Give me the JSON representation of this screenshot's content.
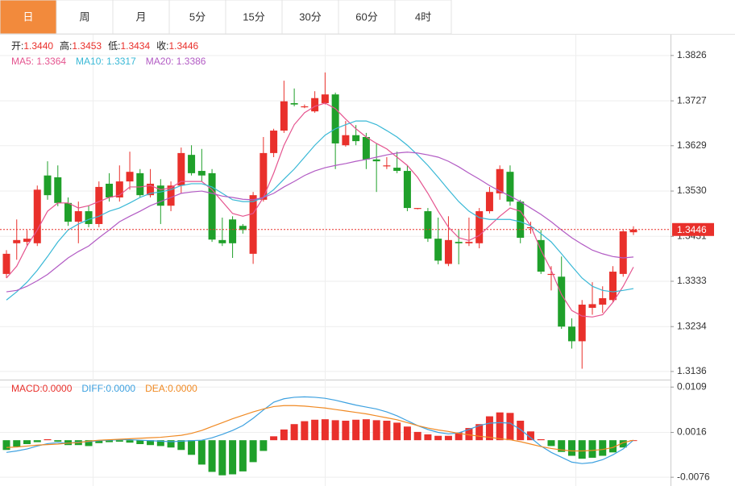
{
  "tabs": [
    "日",
    "周",
    "月",
    "5分",
    "15分",
    "30分",
    "60分",
    "4时"
  ],
  "active_tab": 0,
  "chart_data": [
    {
      "type": "candlestick",
      "ohlc": [
        {
          "label": "开:",
          "value": "1.3440"
        },
        {
          "label": "高:",
          "value": "1.3453"
        },
        {
          "label": "低:",
          "value": "1.3434"
        },
        {
          "label": "收:",
          "value": "1.3446"
        }
      ],
      "up_color": "#e9302b",
      "down_color": "#1fa02a",
      "open": [
        1.3349,
        1.3416,
        1.3419,
        1.3416,
        1.3564,
        1.356,
        1.3504,
        1.3463,
        1.3486,
        1.3458,
        1.3546,
        1.3516,
        1.3551,
        1.3569,
        1.3521,
        1.3542,
        1.3498,
        1.3542,
        1.3609,
        1.3574,
        1.3569,
        1.3423,
        1.3468,
        1.3454,
        1.3393,
        1.3511,
        1.3613,
        1.3662,
        1.3722,
        1.3715,
        1.3704,
        1.3722,
        1.3741,
        1.363,
        1.3652,
        1.3648,
        1.3599,
        1.3586,
        1.3581,
        1.3574,
        1.3493,
        1.3486,
        1.3426,
        1.3371,
        1.3419,
        1.3416,
        1.3416,
        1.3486,
        1.3525,
        1.3572,
        1.3507,
        1.3451,
        1.3423,
        1.3349,
        1.3343,
        1.3234,
        1.3202,
        1.3275,
        1.3282,
        1.3292,
        1.3349,
        1.344
      ],
      "high": [
        1.3401,
        1.3468,
        1.3445,
        1.3542,
        1.3595,
        1.3586,
        1.3516,
        1.3507,
        1.3498,
        1.3551,
        1.3569,
        1.3586,
        1.3616,
        1.3578,
        1.3578,
        1.3556,
        1.3551,
        1.3625,
        1.363,
        1.3622,
        1.3578,
        1.3472,
        1.3475,
        1.3458,
        1.3528,
        1.3648,
        1.3666,
        1.3771,
        1.3754,
        1.3719,
        1.3748,
        1.3789,
        1.3745,
        1.3683,
        1.3674,
        1.3657,
        1.3634,
        1.3604,
        1.3616,
        1.3586,
        1.3493,
        1.3493,
        1.3472,
        1.3475,
        1.3445,
        1.3472,
        1.3493,
        1.3539,
        1.3586,
        1.3586,
        1.3511,
        1.3463,
        1.3445,
        1.3366,
        1.3387,
        1.3252,
        1.3292,
        1.3331,
        1.3322,
        1.3366,
        1.3445,
        1.3453
      ],
      "low": [
        1.334,
        1.338,
        1.341,
        1.341,
        1.3511,
        1.3497,
        1.3454,
        1.3416,
        1.3451,
        1.3451,
        1.3507,
        1.3507,
        1.3533,
        1.3516,
        1.3516,
        1.3458,
        1.3486,
        1.3525,
        1.3564,
        1.3551,
        1.3419,
        1.341,
        1.3384,
        1.3437,
        1.3371,
        1.3507,
        1.3604,
        1.3657,
        1.3715,
        1.3711,
        1.3701,
        1.3719,
        1.3578,
        1.3627,
        1.363,
        1.3578,
        1.3528,
        1.3578,
        1.3569,
        1.3486,
        1.349,
        1.3419,
        1.337,
        1.3366,
        1.337,
        1.341,
        1.3405,
        1.3481,
        1.3511,
        1.3498,
        1.3416,
        1.3437,
        1.3349,
        1.3313,
        1.3229,
        1.3186,
        1.3142,
        1.326,
        1.3264,
        1.3287,
        1.3343,
        1.3434
      ],
      "close": [
        1.3393,
        1.3423,
        1.3426,
        1.3533,
        1.3521,
        1.3504,
        1.3463,
        1.3486,
        1.3458,
        1.3539,
        1.3516,
        1.3551,
        1.3572,
        1.3521,
        1.3546,
        1.3498,
        1.3542,
        1.3613,
        1.3569,
        1.3564,
        1.3424,
        1.3416,
        1.3416,
        1.3445,
        1.3521,
        1.3613,
        1.3662,
        1.3726,
        1.3719,
        1.3715,
        1.3733,
        1.3741,
        1.3634,
        1.3652,
        1.3639,
        1.3599,
        1.3595,
        1.3586,
        1.3574,
        1.3493,
        1.3493,
        1.3426,
        1.3378,
        1.3423,
        1.3416,
        1.3419,
        1.3486,
        1.3528,
        1.3578,
        1.3507,
        1.3428,
        1.3451,
        1.3354,
        1.3349,
        1.3234,
        1.3202,
        1.3282,
        1.3283,
        1.3296,
        1.3354,
        1.3442,
        1.3446
      ],
      "series": [
        {
          "name": "MA5: 1.3364",
          "color": "#e5548f",
          "values": [
            1.334,
            1.3366,
            1.341,
            1.3445,
            1.3486,
            1.3504,
            1.3504,
            1.3493,
            1.3498,
            1.3507,
            1.3516,
            1.3521,
            1.3539,
            1.3539,
            1.3542,
            1.3533,
            1.3537,
            1.3551,
            1.3551,
            1.3551,
            1.3533,
            1.3507,
            1.3481,
            1.3475,
            1.3481,
            1.3516,
            1.3569,
            1.363,
            1.3675,
            1.3701,
            1.3715,
            1.3722,
            1.371,
            1.3687,
            1.3666,
            1.3648,
            1.3634,
            1.3622,
            1.3604,
            1.3586,
            1.356,
            1.3525,
            1.3486,
            1.3451,
            1.3428,
            1.3422,
            1.3433,
            1.3454,
            1.3475,
            1.3493,
            1.3486,
            1.3454,
            1.3401,
            1.3357,
            1.3304,
            1.3269,
            1.3257,
            1.3255,
            1.326,
            1.3287,
            1.3322,
            1.3364
          ]
        },
        {
          "name": "MA10: 1.3317",
          "color": "#38b8d6",
          "values": [
            1.3292,
            1.331,
            1.3331,
            1.3357,
            1.3387,
            1.3419,
            1.3445,
            1.3458,
            1.3468,
            1.3475,
            1.3486,
            1.3493,
            1.3504,
            1.3516,
            1.3525,
            1.3528,
            1.3533,
            1.3542,
            1.3546,
            1.3546,
            1.3539,
            1.3525,
            1.3511,
            1.3507,
            1.3507,
            1.3516,
            1.3533,
            1.3556,
            1.3578,
            1.3604,
            1.363,
            1.3652,
            1.3666,
            1.3675,
            1.3683,
            1.3683,
            1.3675,
            1.3662,
            1.3648,
            1.363,
            1.3609,
            1.3586,
            1.356,
            1.3533,
            1.3507,
            1.3486,
            1.3472,
            1.3468,
            1.3468,
            1.3468,
            1.3463,
            1.3454,
            1.3437,
            1.3419,
            1.3393,
            1.3366,
            1.334,
            1.3322,
            1.3313,
            1.331,
            1.3313,
            1.3317
          ]
        },
        {
          "name": "MA20: 1.3386",
          "color": "#b25bc4",
          "values": [
            1.331,
            1.3313,
            1.3322,
            1.3334,
            1.3348,
            1.3366,
            1.3384,
            1.3398,
            1.341,
            1.3428,
            1.3445,
            1.3463,
            1.3475,
            1.3486,
            1.3498,
            1.3507,
            1.3516,
            1.3525,
            1.3528,
            1.353,
            1.3525,
            1.3519,
            1.3516,
            1.3512,
            1.3511,
            1.3516,
            1.3525,
            1.3539,
            1.3551,
            1.3564,
            1.3574,
            1.3581,
            1.3586,
            1.359,
            1.3595,
            1.3599,
            1.3604,
            1.3609,
            1.3613,
            1.3615,
            1.3613,
            1.3609,
            1.3604,
            1.3595,
            1.3583,
            1.3569,
            1.3556,
            1.3542,
            1.353,
            1.3519,
            1.3507,
            1.3493,
            1.3479,
            1.3463,
            1.3445,
            1.3428,
            1.3414,
            1.3401,
            1.3393,
            1.3387,
            1.3384,
            1.3386
          ]
        }
      ],
      "last_price": 1.3446,
      "last_price_color": "#e9302b",
      "ylim": [
        1.312,
        1.3868
      ],
      "yticks": [
        1.3826,
        1.3727,
        1.3629,
        {
          "value": 1.353,
          "label": "1.3530"
        },
        1.3431,
        1.3333,
        1.3234,
        1.3136
      ],
      "grid": true
    },
    {
      "type": "macd",
      "series": [
        {
          "name": "MACD:0.0000",
          "up_color": "#e9302b",
          "down_color": "#1fa02a",
          "values": [
            -0.002,
            -0.0013,
            -0.0008,
            -0.0004,
            0.0002,
            -0.0003,
            -0.001,
            -0.001,
            -0.0012,
            -0.0006,
            -0.0004,
            -0.0003,
            -0.0005,
            -0.0008,
            -0.001,
            -0.0012,
            -0.0015,
            -0.002,
            -0.003,
            -0.005,
            -0.0065,
            -0.0072,
            -0.007,
            -0.0064,
            -0.0045,
            -0.0022,
            0.0008,
            0.0022,
            0.0033,
            0.0039,
            0.0042,
            0.0043,
            0.0041,
            0.004,
            0.0042,
            0.0043,
            0.0041,
            0.004,
            0.0036,
            0.0028,
            0.0017,
            0.0012,
            0.0009,
            0.0009,
            0.0016,
            0.0025,
            0.0033,
            0.0049,
            0.0057,
            0.0056,
            0.004,
            0.0018,
            0.0002,
            -0.0012,
            -0.0024,
            -0.0032,
            -0.0038,
            -0.0036,
            -0.0032,
            -0.0025,
            -0.0015,
            0.0
          ]
        },
        {
          "name": "DIFF:0.0000",
          "color": "#3da1e0",
          "values": [
            -0.0025,
            -0.0022,
            -0.0018,
            -0.0012,
            -0.0007,
            -0.0005,
            -0.0006,
            -0.0004,
            -0.0003,
            -0.0001,
            0.0,
            0.0001,
            0.0001,
            0.0,
            -0.0001,
            -0.0002,
            -0.0003,
            -0.0002,
            -0.0001,
            0.0,
            0.0005,
            0.0012,
            0.002,
            0.003,
            0.0045,
            0.0062,
            0.0078,
            0.0085,
            0.0088,
            0.0089,
            0.0088,
            0.0086,
            0.0082,
            0.0077,
            0.0072,
            0.0068,
            0.0064,
            0.0058,
            0.005,
            0.004,
            0.003,
            0.0022,
            0.0016,
            0.0013,
            0.0015,
            0.0022,
            0.003,
            0.0035,
            0.0036,
            0.0035,
            0.0022,
            0.0005,
            -0.0012,
            -0.0025,
            -0.0035,
            -0.0045,
            -0.0048,
            -0.0046,
            -0.004,
            -0.003,
            -0.0018,
            0.0
          ]
        },
        {
          "name": "DEA:0.0000",
          "color": "#f08a24",
          "values": [
            -0.0015,
            -0.0014,
            -0.0012,
            -0.001,
            -0.0009,
            -0.0008,
            -0.0006,
            -0.0005,
            -0.0002,
            0.0,
            0.0001,
            0.0002,
            0.0003,
            0.0004,
            0.0005,
            0.0006,
            0.0008,
            0.001,
            0.0014,
            0.002,
            0.0028,
            0.0036,
            0.0044,
            0.0051,
            0.0058,
            0.0064,
            0.0069,
            0.0071,
            0.0071,
            0.007,
            0.0068,
            0.0066,
            0.0063,
            0.006,
            0.0057,
            0.0054,
            0.005,
            0.0046,
            0.0042,
            0.0036,
            0.003,
            0.0025,
            0.0021,
            0.0018,
            0.0014,
            0.0011,
            0.0008,
            0.0006,
            0.0003,
            0.0001,
            -0.0003,
            -0.0008,
            -0.0013,
            -0.0017,
            -0.002,
            -0.0022,
            -0.0022,
            -0.0021,
            -0.0019,
            -0.0015,
            -0.0005,
            0.0
          ]
        }
      ],
      "ylim": [
        -0.0089,
        0.0121
      ],
      "yticks": [
        0.0109,
        0.0016,
        -0.0076
      ],
      "grid": true
    }
  ]
}
